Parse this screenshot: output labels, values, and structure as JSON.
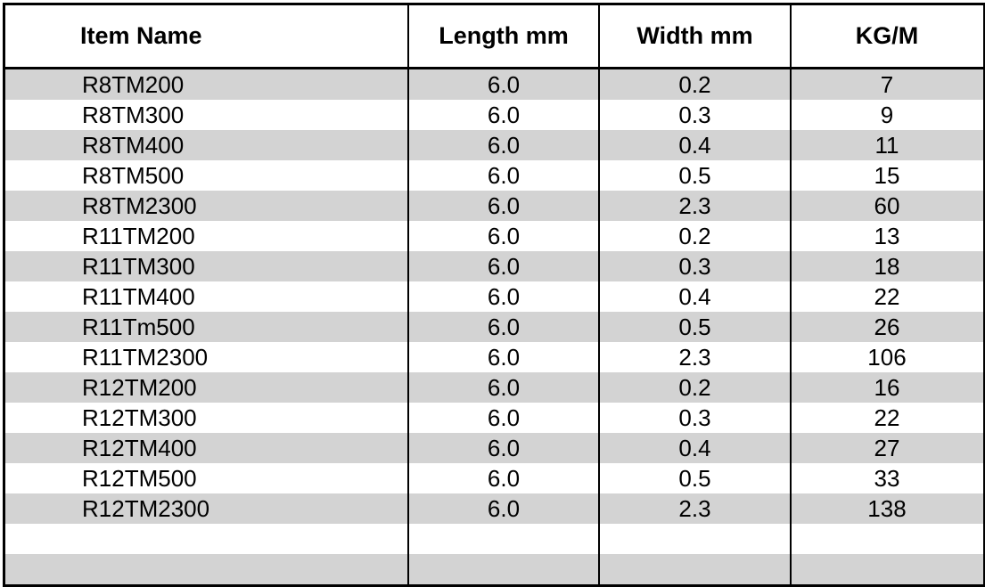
{
  "table": {
    "header": [
      "Item Name",
      "Length mm",
      "Width mm",
      "KG/M"
    ],
    "rows": [
      [
        "R8TM200",
        "6.0",
        "0.2",
        "7"
      ],
      [
        "R8TM300",
        "6.0",
        "0.3",
        "9"
      ],
      [
        "R8TM400",
        "6.0",
        "0.4",
        "11"
      ],
      [
        "R8TM500",
        "6.0",
        "0.5",
        "15"
      ],
      [
        "R8TM2300",
        "6.0",
        "2.3",
        "60"
      ],
      [
        "R11TM200",
        "6.0",
        "0.2",
        "13"
      ],
      [
        "R11TM300",
        "6.0",
        "0.3",
        "18"
      ],
      [
        "R11TM400",
        "6.0",
        "0.4",
        "22"
      ],
      [
        "R11Tm500",
        "6.0",
        "0.5",
        "26"
      ],
      [
        "R11TM2300",
        "6.0",
        "2.3",
        "106"
      ],
      [
        "R12TM200",
        "6.0",
        "0.2",
        "16"
      ],
      [
        "R12TM300",
        "6.0",
        "0.3",
        "22"
      ],
      [
        "R12TM400",
        "6.0",
        "0.4",
        "27"
      ],
      [
        "R12TM500",
        "6.0",
        "0.5",
        "33"
      ],
      [
        "R12TM2300",
        "6.0",
        "2.3",
        "138"
      ]
    ]
  }
}
